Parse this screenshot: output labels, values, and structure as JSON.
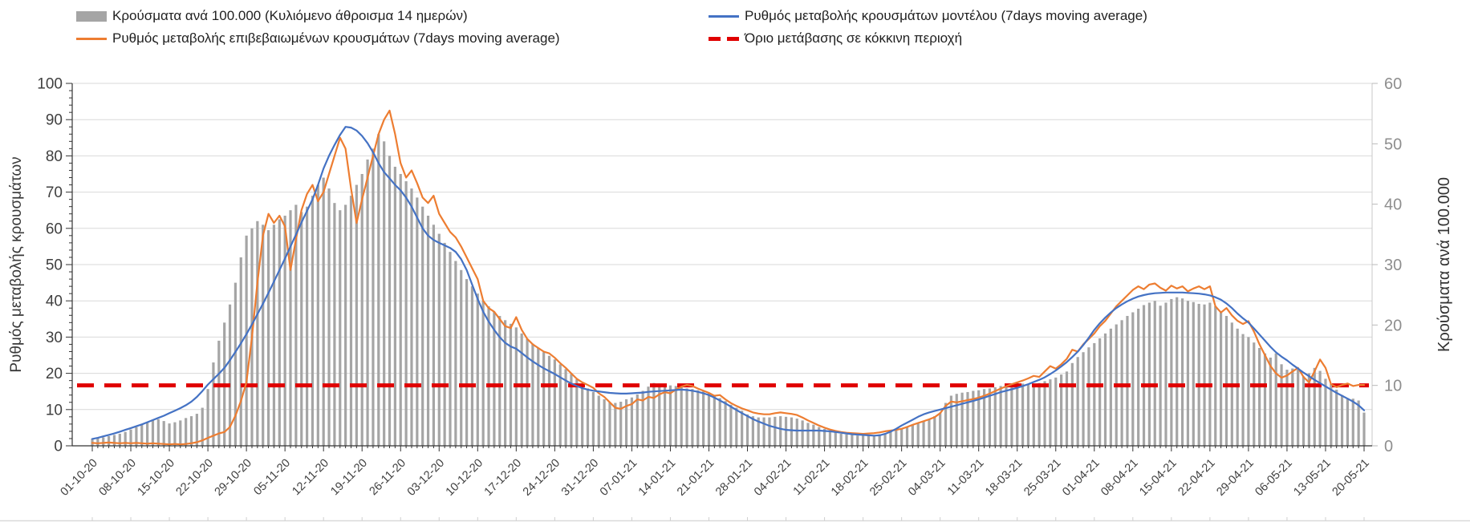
{
  "legend": {
    "items": [
      {
        "label": "Κρούσματα ανά 100.000 (Κυλιόμενο άθροισμα 14 ημερών)",
        "marker": "bar-swatch",
        "color": "#a5a5a5"
      },
      {
        "label": "Ρυθμός μεταβολής επιβεβαιωμένων κρουσμάτων (7days moving average)",
        "marker": "line-swatch",
        "color": "#ed7d31"
      },
      {
        "label": "Ρυθμός μεταβολής κρουσμάτων μοντέλου (7days moving average)",
        "marker": "line-swatch",
        "color": "#4472c4"
      },
      {
        "label": "Όριο μετάβασης σε κόκκινη περιοχή",
        "marker": "dashed-swatch",
        "color": "#e00000"
      }
    ]
  },
  "chart_data": {
    "type": "bar",
    "subtype": "combo-bar-line",
    "grid": "horizontal-on",
    "left_axis": {
      "title": "Ρυθμός μεταβολής κρουσμάτων",
      "min": 0,
      "max": 100,
      "step": 10,
      "ticks": [
        0,
        10,
        20,
        30,
        40,
        50,
        60,
        70,
        80,
        90,
        100
      ]
    },
    "right_axis": {
      "title": "Κρούσματα ανά 100.000",
      "min": 0,
      "max": 60,
      "step": 10,
      "ticks": [
        0,
        10,
        20,
        30,
        40,
        50,
        60
      ]
    },
    "x_tick_labels": [
      "01-10-20",
      "08-10-20",
      "15-10-20",
      "22-10-20",
      "29-10-20",
      "05-11-20",
      "12-11-20",
      "19-11-20",
      "26-11-20",
      "03-12-20",
      "10-12-20",
      "17-12-20",
      "24-12-20",
      "31-12-20",
      "07-01-21",
      "14-01-21",
      "21-01-21",
      "28-01-21",
      "04-02-21",
      "11-02-21",
      "18-02-21",
      "25-02-21",
      "04-03-21",
      "11-03-21",
      "18-03-21",
      "25-03-21",
      "01-04-21",
      "08-04-21",
      "15-04-21",
      "22-04-21",
      "29-04-21",
      "06-05-21",
      "13-05-21",
      "20-05-21"
    ],
    "days_per_tick": 7,
    "threshold": {
      "label": "Όριο μετάβασης σε κόκκινη περιοχή",
      "value_right_axis": 10,
      "value_left_axis": 16.7,
      "color": "#e00000"
    },
    "series": [
      {
        "name": "Κρούσματα ανά 100.000 (Κυλιόμενο άθροισμα 14 ημερών)",
        "type": "bar",
        "axis": "right",
        "color": "#a5a5a5",
        "values": [
          1.2,
          1.3,
          1.4,
          1.6,
          1.8,
          2.0,
          2.3,
          2.7,
          3.1,
          3.5,
          3.9,
          4.2,
          4.4,
          4.1,
          3.7,
          3.9,
          4.2,
          4.6,
          4.9,
          5.3,
          6.3,
          9.4,
          13.8,
          17.4,
          20.4,
          23.4,
          27.0,
          31.2,
          34.8,
          36.0,
          37.2,
          36.6,
          35.7,
          36.6,
          37.5,
          38.1,
          39.0,
          39.9,
          38.7,
          39.6,
          41.4,
          43.2,
          44.4,
          42.6,
          40.2,
          39.0,
          39.9,
          41.4,
          43.2,
          45.0,
          47.4,
          49.2,
          51.6,
          50.4,
          48.0,
          46.2,
          45.0,
          43.8,
          42.6,
          41.1,
          39.6,
          38.1,
          36.6,
          35.1,
          33.6,
          32.1,
          30.6,
          29.1,
          27.6,
          26.4,
          25.2,
          24.0,
          23.1,
          22.2,
          21.5,
          20.8,
          20.2,
          19.6,
          18.6,
          17.7,
          16.9,
          16.2,
          15.5,
          14.9,
          14.3,
          13.5,
          12.7,
          11.9,
          11.0,
          10.2,
          9.5,
          8.9,
          8.3,
          7.7,
          7.2,
          7.1,
          7.3,
          7.7,
          8.0,
          8.5,
          9.1,
          9.8,
          10.4,
          10.3,
          10.1,
          10.0,
          9.9,
          9.7,
          9.5,
          9.4,
          9.2,
          9.0,
          8.8,
          8.4,
          7.9,
          7.4,
          6.8,
          6.3,
          5.8,
          5.2,
          4.9,
          4.7,
          4.7,
          4.7,
          4.8,
          4.9,
          4.8,
          4.7,
          4.5,
          4.2,
          3.8,
          3.5,
          3.1,
          2.8,
          2.5,
          2.3,
          2.0,
          1.9,
          1.8,
          1.7,
          1.7,
          1.7,
          1.7,
          1.9,
          2.0,
          2.3,
          2.6,
          2.9,
          3.2,
          3.5,
          3.8,
          4.1,
          4.4,
          4.9,
          5.5,
          7.1,
          8.3,
          8.6,
          8.8,
          8.9,
          9.1,
          9.2,
          9.4,
          9.5,
          9.7,
          9.9,
          10.1,
          10.3,
          10.6,
          10.3,
          10.1,
          10.1,
          10.4,
          10.7,
          11.0,
          11.3,
          11.8,
          12.3,
          13.7,
          14.7,
          15.5,
          16.3,
          17.0,
          17.8,
          18.6,
          19.4,
          20.1,
          20.8,
          21.5,
          22.1,
          22.7,
          23.3,
          23.7,
          24.0,
          23.2,
          23.7,
          24.3,
          24.6,
          24.4,
          24.0,
          23.8,
          23.5,
          23.4,
          23.7,
          23.1,
          22.3,
          21.5,
          20.4,
          19.4,
          18.5,
          18.0,
          17.1,
          16.2,
          15.3,
          14.6,
          15.3,
          13.5,
          12.6,
          12.8,
          12.6,
          11.5,
          12.0,
          12.9,
          12.4,
          11.1,
          10.2,
          9.3,
          8.4,
          7.9,
          7.8,
          7.5,
          5.5
        ]
      },
      {
        "name": "Ρυθμός μεταβολής επιβεβαιωμένων κρουσμάτων (7days moving average)",
        "type": "line",
        "axis": "left",
        "color": "#ed7d31",
        "values": [
          0.8,
          0.7,
          0.8,
          0.9,
          0.8,
          0.7,
          0.8,
          0.7,
          0.8,
          0.7,
          0.6,
          0.7,
          0.6,
          0.5,
          0.4,
          0.5,
          0.4,
          0.5,
          0.7,
          1.0,
          1.5,
          2.2,
          2.8,
          3.4,
          3.8,
          5.2,
          8.3,
          12.4,
          17.5,
          30.0,
          45.0,
          58.0,
          64.0,
          61.5,
          63.5,
          60.5,
          48.5,
          57.0,
          65.0,
          69.5,
          72.0,
          67.5,
          70.0,
          75.0,
          80.0,
          85.0,
          82.0,
          71.0,
          61.5,
          68.0,
          74.0,
          80.0,
          86.0,
          90.0,
          92.5,
          86.0,
          78.0,
          74.0,
          76.0,
          72.5,
          68.5,
          67.0,
          69.0,
          64.0,
          61.5,
          59.0,
          57.5,
          55.0,
          52.0,
          49.0,
          46.0,
          40.0,
          38.0,
          37.0,
          35.0,
          33.0,
          32.5,
          35.5,
          32.0,
          29.5,
          28.0,
          27.0,
          26.0,
          25.5,
          24.3,
          22.8,
          21.5,
          20.0,
          18.5,
          17.5,
          16.8,
          16.0,
          14.5,
          13.5,
          12.0,
          10.5,
          10.2,
          11.0,
          11.5,
          12.8,
          12.5,
          13.5,
          13.2,
          14.2,
          14.8,
          14.5,
          15.5,
          16.3,
          16.8,
          16.5,
          15.8,
          15.2,
          14.6,
          13.8,
          14.0,
          12.8,
          11.8,
          11.0,
          10.3,
          9.8,
          9.2,
          8.9,
          8.7,
          8.7,
          9.0,
          9.2,
          9.0,
          8.8,
          8.5,
          7.8,
          7.0,
          6.3,
          5.6,
          5.0,
          4.5,
          4.1,
          3.8,
          3.6,
          3.5,
          3.4,
          3.3,
          3.4,
          3.5,
          3.7,
          4.0,
          4.2,
          4.4,
          4.7,
          5.2,
          5.8,
          6.3,
          6.8,
          7.3,
          7.9,
          9.0,
          11.0,
          12.2,
          12.0,
          12.3,
          12.6,
          12.9,
          13.3,
          13.8,
          14.4,
          15.1,
          15.8,
          16.4,
          17.0,
          17.5,
          18.0,
          18.6,
          19.3,
          19.0,
          20.5,
          22.0,
          21.3,
          22.5,
          24.0,
          26.5,
          26.0,
          28.0,
          29.5,
          31.0,
          33.0,
          34.5,
          36.5,
          38.5,
          40.0,
          41.5,
          43.0,
          44.0,
          43.2,
          44.5,
          44.8,
          43.6,
          42.8,
          44.2,
          43.4,
          44.0,
          42.6,
          43.4,
          44.0,
          43.2,
          44.0,
          38.5,
          36.8,
          38.0,
          36.0,
          34.5,
          33.6,
          34.4,
          31.5,
          28.0,
          25.0,
          22.0,
          20.0,
          18.8,
          19.4,
          20.5,
          21.5,
          19.0,
          17.5,
          20.5,
          23.8,
          21.5,
          17.0,
          16.2,
          16.8,
          17.2,
          16.5,
          16.8,
          16.8
        ]
      },
      {
        "name": "Ρυθμός μεταβολής κρουσμάτων μοντέλου (7days moving average)",
        "type": "line",
        "axis": "left",
        "color": "#4472c4",
        "values": [
          1.9,
          2.2,
          2.6,
          3.0,
          3.4,
          3.9,
          4.4,
          4.9,
          5.4,
          5.9,
          6.5,
          7.1,
          7.7,
          8.3,
          9.0,
          9.7,
          10.4,
          11.2,
          12.2,
          13.5,
          15.1,
          16.9,
          18.4,
          19.9,
          21.5,
          23.6,
          25.9,
          28.3,
          30.8,
          33.5,
          36.3,
          39.2,
          42.2,
          45.3,
          48.5,
          51.7,
          55.0,
          58.3,
          61.6,
          64.8,
          68.0,
          72.0,
          76.5,
          80.0,
          83.0,
          85.8,
          88.0,
          87.8,
          87.0,
          85.5,
          83.5,
          81.0,
          78.0,
          75.5,
          73.8,
          72.0,
          70.5,
          68.5,
          66.0,
          63.0,
          60.0,
          58.0,
          56.8,
          56.0,
          55.3,
          54.6,
          53.5,
          51.5,
          48.5,
          44.5,
          40.5,
          37.0,
          34.3,
          32.0,
          30.0,
          28.4,
          27.4,
          26.8,
          25.6,
          24.4,
          23.3,
          22.3,
          21.4,
          20.6,
          19.8,
          18.9,
          18.0,
          17.2,
          16.5,
          15.9,
          15.5,
          15.2,
          15.0,
          14.8,
          14.6,
          14.5,
          14.4,
          14.4,
          14.5,
          14.6,
          14.7,
          14.9,
          15.0,
          15.1,
          15.2,
          15.3,
          15.4,
          15.5,
          15.4,
          15.2,
          14.9,
          14.5,
          14.0,
          13.3,
          12.5,
          11.7,
          10.8,
          9.9,
          9.0,
          8.2,
          7.4,
          6.7,
          6.1,
          5.5,
          5.1,
          4.7,
          4.4,
          4.3,
          4.2,
          4.2,
          4.2,
          4.2,
          4.2,
          4.1,
          4.0,
          3.8,
          3.6,
          3.4,
          3.2,
          3.1,
          3.0,
          2.9,
          2.8,
          2.9,
          3.3,
          3.9,
          4.7,
          5.6,
          6.4,
          7.2,
          8.0,
          8.7,
          9.2,
          9.6,
          10.0,
          10.4,
          10.8,
          11.2,
          11.6,
          12.0,
          12.4,
          12.8,
          13.3,
          13.8,
          14.3,
          14.8,
          15.2,
          15.6,
          16.0,
          16.5,
          17.0,
          17.6,
          18.2,
          18.9,
          19.8,
          20.8,
          21.9,
          23.1,
          24.5,
          26.0,
          27.8,
          29.8,
          32.0,
          33.8,
          35.4,
          36.8,
          38.0,
          39.0,
          39.9,
          40.6,
          41.2,
          41.6,
          41.9,
          42.1,
          42.2,
          42.3,
          42.3,
          42.3,
          42.3,
          42.2,
          42.1,
          42.0,
          41.8,
          41.5,
          41.0,
          40.3,
          39.3,
          38.0,
          36.5,
          35.2,
          34.0,
          32.4,
          30.7,
          29.0,
          27.3,
          25.8,
          24.6,
          23.6,
          22.4,
          21.3,
          20.2,
          19.2,
          18.2,
          17.3,
          16.4,
          15.5,
          14.6,
          13.8,
          13.0,
          12.2,
          11.2,
          9.8
        ]
      }
    ],
    "colors": {
      "bars": "#a5a5a5",
      "model_line": "#4472c4",
      "confirmed_line": "#ed7d31",
      "threshold": "#e00000",
      "gridline": "#d9d9d9",
      "axis": "#333333",
      "left_tick_text": "#404040",
      "right_tick_text": "#8e8e8e"
    }
  }
}
